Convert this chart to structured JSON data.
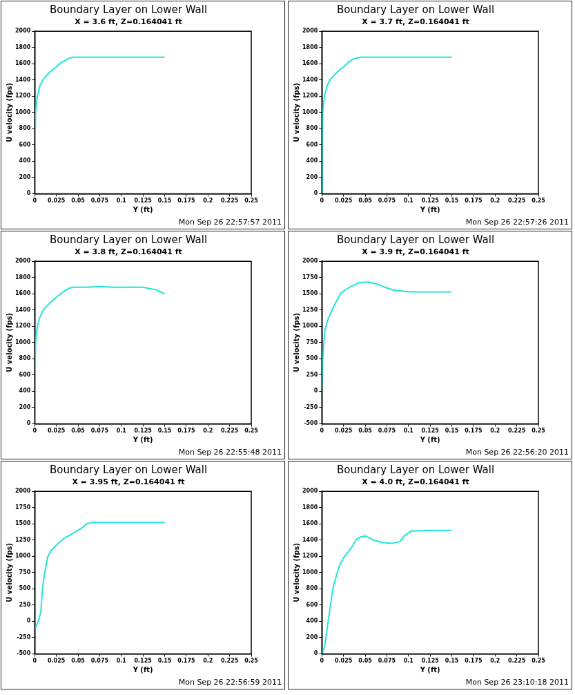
{
  "chart_data": [
    {
      "type": "line",
      "title": "Boundary Layer on Lower Wall",
      "subtitle": "X = 3.6 ft, Z=0.164041 ft",
      "xlabel": "Y (ft)",
      "ylabel": "U velocity (fps)",
      "annotations": [
        "Mon Sep 26 22:57:57 2011"
      ],
      "color": "#1ee6d9",
      "marker": "none",
      "xlim": [
        0,
        0.25
      ],
      "xticks": [
        0,
        0.025,
        0.05,
        0.075,
        0.1,
        0.125,
        0.15,
        0.175,
        0.2,
        0.225,
        0.25
      ],
      "ylim": [
        0,
        2000
      ],
      "yticks": [
        0,
        200,
        400,
        600,
        800,
        1000,
        1200,
        1400,
        1600,
        1800,
        2000
      ],
      "x": [
        0,
        0.0005,
        0.001,
        0.003,
        0.006,
        0.01,
        0.015,
        0.02,
        0.025,
        0.03,
        0.035,
        0.04,
        0.045,
        0.05,
        0.1,
        0.15
      ],
      "values": [
        0,
        600,
        1000,
        1200,
        1330,
        1410,
        1470,
        1520,
        1560,
        1610,
        1640,
        1670,
        1680,
        1680,
        1680,
        1680
      ]
    },
    {
      "type": "line",
      "title": "Boundary Layer on Lower Wall",
      "subtitle": "X = 3.7 ft, Z=0.164041 ft",
      "xlabel": "Y (ft)",
      "ylabel": "U velocity (fps)",
      "annotations": [
        "Mon Sep 26 22:57:26 2011"
      ],
      "color": "#1ee6d9",
      "marker": "none",
      "xlim": [
        0,
        0.25
      ],
      "xticks": [
        0,
        0.025,
        0.05,
        0.075,
        0.1,
        0.125,
        0.15,
        0.175,
        0.2,
        0.225,
        0.25
      ],
      "ylim": [
        0,
        2000
      ],
      "yticks": [
        0,
        200,
        400,
        600,
        800,
        1000,
        1200,
        1400,
        1600,
        1800,
        2000
      ],
      "x": [
        0,
        0.0005,
        0.001,
        0.003,
        0.006,
        0.01,
        0.015,
        0.02,
        0.025,
        0.03,
        0.035,
        0.04,
        0.045,
        0.1,
        0.15
      ],
      "values": [
        0,
        600,
        1000,
        1200,
        1330,
        1410,
        1470,
        1520,
        1560,
        1610,
        1650,
        1670,
        1680,
        1680,
        1680
      ]
    },
    {
      "type": "line",
      "title": "Boundary Layer on Lower Wall",
      "subtitle": "X = 3.8 ft, Z=0.164041 ft",
      "xlabel": "Y (ft)",
      "ylabel": "U velocity (fps)",
      "annotations": [
        "Mon Sep 26 22:55:48 2011"
      ],
      "color": "#1ee6d9",
      "marker": "none",
      "xlim": [
        0,
        0.25
      ],
      "xticks": [
        0,
        0.025,
        0.05,
        0.075,
        0.1,
        0.125,
        0.15,
        0.175,
        0.2,
        0.225,
        0.25
      ],
      "ylim": [
        0,
        2000
      ],
      "yticks": [
        0,
        200,
        400,
        600,
        800,
        1000,
        1200,
        1400,
        1600,
        1800,
        2000
      ],
      "x": [
        0,
        0.0005,
        0.001,
        0.003,
        0.006,
        0.01,
        0.015,
        0.02,
        0.025,
        0.03,
        0.035,
        0.04,
        0.045,
        0.06,
        0.075,
        0.09,
        0.125,
        0.14,
        0.15
      ],
      "values": [
        0,
        600,
        1000,
        1200,
        1310,
        1400,
        1460,
        1510,
        1560,
        1600,
        1640,
        1670,
        1680,
        1680,
        1690,
        1680,
        1680,
        1650,
        1600
      ]
    },
    {
      "type": "line",
      "title": "Boundary Layer on Lower Wall",
      "subtitle": "X = 3.9 ft, Z=0.164041 ft",
      "xlabel": "Y (ft)",
      "ylabel": "U velocity (fps)",
      "annotations": [
        "Mon Sep 26 22:56:20 2011"
      ],
      "color": "#1ee6d9",
      "marker": "none",
      "xlim": [
        0,
        0.25
      ],
      "xticks": [
        0,
        0.025,
        0.05,
        0.075,
        0.1,
        0.125,
        0.15,
        0.175,
        0.2,
        0.225,
        0.25
      ],
      "ylim": [
        -500,
        2000
      ],
      "yticks": [
        -500,
        -250,
        0,
        250,
        500,
        750,
        1000,
        1250,
        1500,
        1750,
        2000
      ],
      "x": [
        0,
        0.001,
        0.0034,
        0.007,
        0.012,
        0.017,
        0.022,
        0.027,
        0.032,
        0.038,
        0.043,
        0.054,
        0.066,
        0.075,
        0.085,
        0.102,
        0.15
      ],
      "values": [
        -20,
        500,
        940,
        1100,
        1260,
        1390,
        1510,
        1560,
        1600,
        1640,
        1670,
        1680,
        1640,
        1590,
        1550,
        1530,
        1530
      ]
    },
    {
      "type": "line",
      "title": "Boundary Layer on Lower Wall",
      "subtitle": "X = 3.95 ft, Z=0.164041 ft",
      "xlabel": "Y (ft)",
      "ylabel": "U velocity (fps)",
      "annotations": [
        "Mon Sep 26 22:56:59 2011"
      ],
      "color": "#1ee6d9",
      "marker": "none",
      "xlim": [
        0,
        0.25
      ],
      "xticks": [
        0,
        0.025,
        0.05,
        0.075,
        0.1,
        0.125,
        0.15,
        0.175,
        0.2,
        0.225,
        0.25
      ],
      "ylim": [
        -500,
        2000
      ],
      "yticks": [
        -500,
        -250,
        0,
        250,
        500,
        750,
        1000,
        1250,
        1500,
        1750,
        2000
      ],
      "x": [
        0,
        0.001,
        0.004,
        0.007,
        0.009,
        0.011,
        0.015,
        0.019,
        0.025,
        0.034,
        0.04,
        0.05,
        0.054,
        0.06,
        0.066,
        0.15
      ],
      "values": [
        -80,
        -100,
        0,
        130,
        490,
        700,
        990,
        1090,
        1170,
        1280,
        1320,
        1400,
        1430,
        1500,
        1520,
        1520
      ]
    },
    {
      "type": "line",
      "title": "Boundary Layer on Lower Wall",
      "subtitle": "X = 4.0 ft, Z=0.164041 ft",
      "xlabel": "Y (ft)",
      "ylabel": "U velocity (fps)",
      "annotations": [
        "Mon Sep 26 23:10:18 2011"
      ],
      "color": "#1ee6d9",
      "marker": "none",
      "xlim": [
        0,
        0.25
      ],
      "xticks": [
        0,
        0.025,
        0.05,
        0.075,
        0.1,
        0.125,
        0.15,
        0.175,
        0.2,
        0.225,
        0.25
      ],
      "ylim": [
        0,
        2000
      ],
      "yticks": [
        0,
        200,
        400,
        600,
        800,
        1000,
        1200,
        1400,
        1600,
        1800,
        2000
      ],
      "x": [
        0,
        0.003,
        0.01,
        0.013,
        0.02,
        0.025,
        0.035,
        0.04,
        0.045,
        0.05,
        0.06,
        0.07,
        0.08,
        0.09,
        0.095,
        0.103,
        0.125,
        0.15
      ],
      "values": [
        0,
        80,
        600,
        820,
        1080,
        1180,
        1320,
        1410,
        1440,
        1450,
        1400,
        1370,
        1360,
        1380,
        1450,
        1510,
        1520,
        1520
      ]
    }
  ]
}
